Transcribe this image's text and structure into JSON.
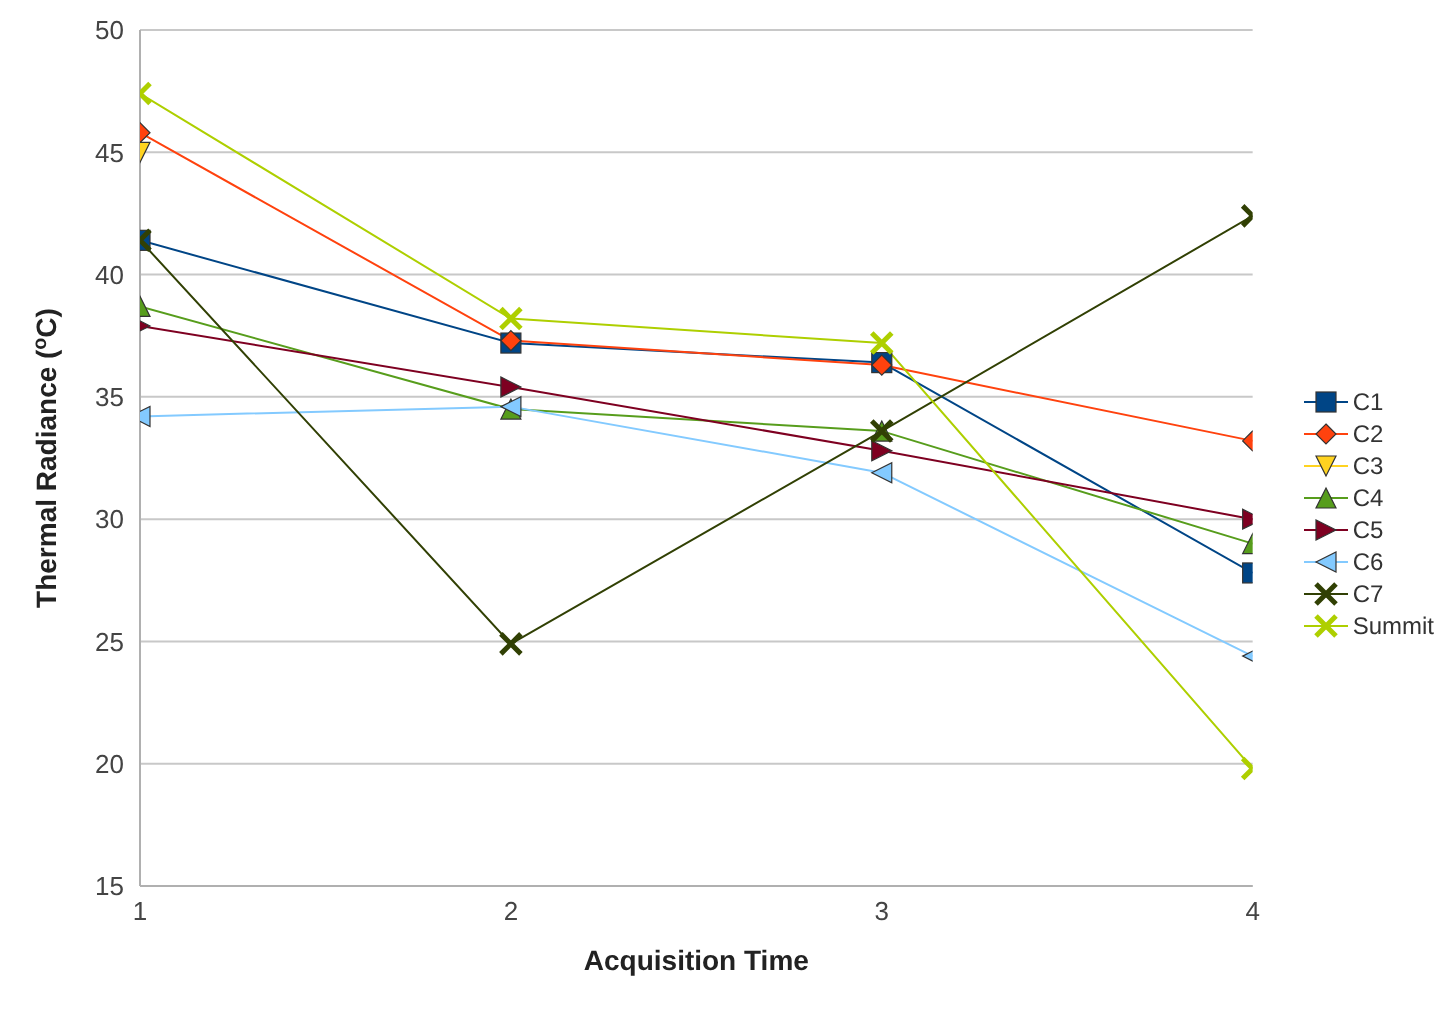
{
  "chart_data": {
    "type": "line",
    "xlabel": "Acquisition Time",
    "ylabel": "Thermal Radiance ($^{o}$C)",
    "x": [
      1,
      2,
      3,
      4
    ],
    "xlim": [
      1,
      4
    ],
    "xticks": [
      1,
      2,
      3,
      4
    ],
    "ylim": [
      15,
      50
    ],
    "yticks": [
      15,
      20,
      25,
      30,
      35,
      40,
      45,
      50
    ],
    "grid": "y",
    "legend": "right",
    "series": [
      {
        "name": "C1",
        "color": "#004586",
        "marker": "square",
        "values": [
          41.4,
          37.2,
          36.4,
          27.8
        ]
      },
      {
        "name": "C2",
        "color": "#ff420e",
        "marker": "diamond",
        "values": [
          45.8,
          37.3,
          36.3,
          33.2
        ]
      },
      {
        "name": "C3",
        "color": "#ffd320",
        "marker": "triangle",
        "values": [
          45.0,
          null,
          null,
          null
        ]
      },
      {
        "name": "C4",
        "color": "#579d1c",
        "marker": "triangle",
        "values": [
          38.7,
          34.5,
          33.6,
          29.0
        ]
      },
      {
        "name": "C5",
        "color": "#7e0021",
        "marker": "triangle",
        "values": [
          37.9,
          35.4,
          32.8,
          30.0
        ]
      },
      {
        "name": "C6",
        "color": "#83caff",
        "marker": "triangle",
        "values": [
          34.2,
          34.6,
          31.9,
          24.4
        ]
      },
      {
        "name": "C7",
        "color": "#314004",
        "marker": "cross",
        "values": [
          41.4,
          24.9,
          33.6,
          42.4
        ]
      },
      {
        "name": "Summit",
        "color": "#aecf00",
        "marker": "cross",
        "values": [
          47.4,
          38.2,
          37.2,
          19.8
        ]
      }
    ]
  }
}
